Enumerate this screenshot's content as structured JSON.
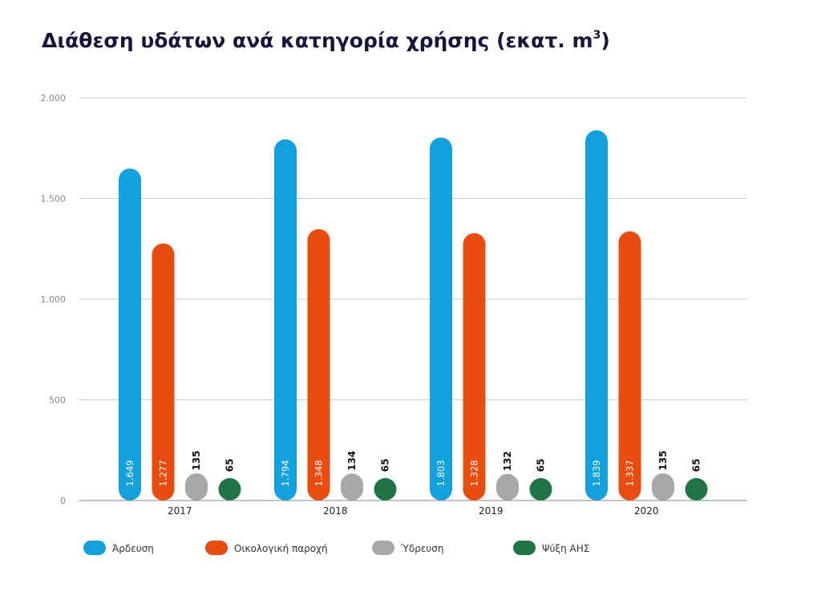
{
  "chart_data": {
    "type": "bar",
    "title": "Διάθεση υδάτων ανά κατηγορία χρήσης (εκατ. m",
    "title_sup": "3",
    "title_close": ")",
    "categories": [
      "2017",
      "2018",
      "2019",
      "2020"
    ],
    "series": [
      {
        "name": "Άρδευση",
        "color": "#13a1db",
        "values": [
          1649,
          1794,
          1803,
          1839
        ],
        "labels": [
          "1.649",
          "1.794",
          "1.803",
          "1.839"
        ],
        "label_inside": true
      },
      {
        "name": "Οικολογική παροχή",
        "color": "#e84c0e",
        "values": [
          1277,
          1348,
          1328,
          1337
        ],
        "labels": [
          "1.277",
          "1.348",
          "1.328",
          "1.337"
        ],
        "label_inside": true
      },
      {
        "name": "Ύδρευση",
        "color": "#a8a8aa",
        "values": [
          135,
          134,
          132,
          135
        ],
        "labels": [
          "135",
          "134",
          "132",
          "135"
        ],
        "label_inside": false
      },
      {
        "name": "Ψύξη ΑΗΣ",
        "color": "#1e7444",
        "values": [
          65,
          65,
          65,
          65
        ],
        "labels": [
          "65",
          "65",
          "65",
          "65"
        ],
        "label_inside": false
      }
    ],
    "yticks": [
      0,
      500,
      1000,
      1500,
      2000
    ],
    "ytick_labels": [
      "0",
      "500",
      "1.000",
      "1.500",
      "2.000"
    ],
    "ylim": [
      0,
      2000
    ],
    "grid": true,
    "legend_position": "bottom",
    "gridline_color": "#cccccc",
    "axis_color": "#888888"
  }
}
